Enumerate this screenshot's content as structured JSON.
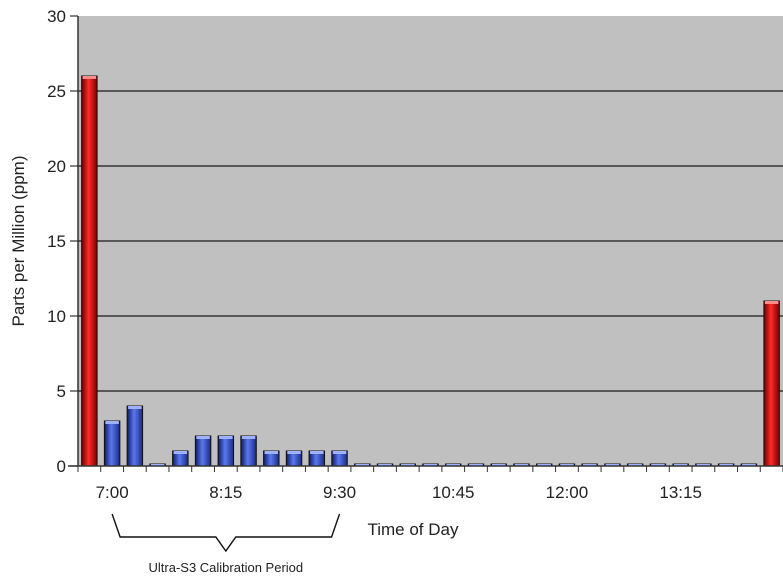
{
  "chart_data": {
    "type": "bar",
    "title": "",
    "xlabel": "Time of Day",
    "ylabel": "Parts per Million (ppm)",
    "ylim": [
      0,
      30
    ],
    "yticks": [
      0,
      5,
      10,
      15,
      20,
      25,
      30
    ],
    "grid": true,
    "x_tick_labels": [
      "7:00",
      "8:15",
      "9:30",
      "10:45",
      "12:00",
      "13:15"
    ],
    "x_tick_bar_index": [
      1,
      6,
      11,
      16,
      21,
      26
    ],
    "values": [
      26,
      3,
      4,
      0,
      1,
      2,
      2,
      2,
      1,
      1,
      1,
      1,
      0,
      0,
      0,
      0,
      0,
      0,
      0,
      0,
      0,
      0,
      0,
      0,
      0,
      0,
      0,
      0,
      0,
      0,
      11
    ],
    "highlight_indices": [
      0,
      30
    ],
    "colors": {
      "background": "#c0c0c0",
      "bar_normal": "#3a52c8",
      "bar_highlight": "#e01010",
      "grid": "#1a1a1a"
    },
    "annotations": [
      {
        "text": "Ultra-S3 Calibration Period",
        "from_bar": 1,
        "to_bar": 11
      }
    ]
  }
}
